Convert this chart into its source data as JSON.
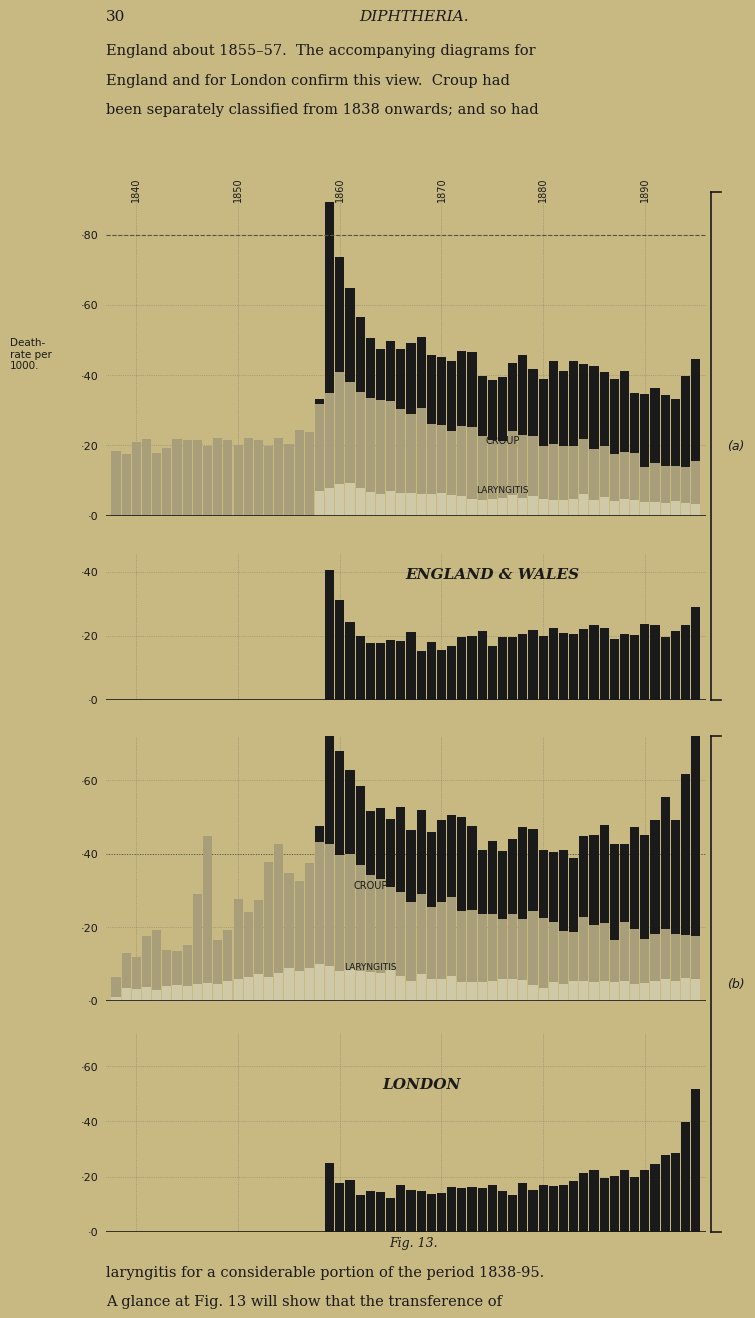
{
  "bg_color": "#c8b882",
  "bar_color_black": "#1a1a1a",
  "bar_color_gray": "#a89e7a",
  "bar_color_lightgray": "#d0c9a8",
  "text_color": "#1a1a1a",
  "title_text": "DIPHTHERIA.",
  "page_num": "30",
  "fig_caption": "Fig. 13.",
  "year_start": 1838,
  "year_end": 1895,
  "decade_ticks": [
    1840,
    1850,
    1860,
    1870,
    1880,
    1890
  ],
  "top_text_line1": "England about 1855–57.  The accompanying diagrams for",
  "top_text_line2": "England and for London confirm this view.  Croup had",
  "top_text_line3": "been separately classified from 1838 onwards; and so had",
  "bottom_text_line1": "laryngitis for a considerable portion of the period 1838-95.",
  "bottom_text_line2": "A glance at Fig. 13 will show that the transference of",
  "ylabel_text": "Death-\nrate per\n1000.",
  "label_croup_a": "CROUP",
  "label_laryngitis_a": "LARYNGITIS",
  "label_croup_b": "CROUP",
  "label_laryngitis_b": "LARYNGITIS",
  "label_england": "ENGLAND & WALES",
  "label_london": "LONDON"
}
